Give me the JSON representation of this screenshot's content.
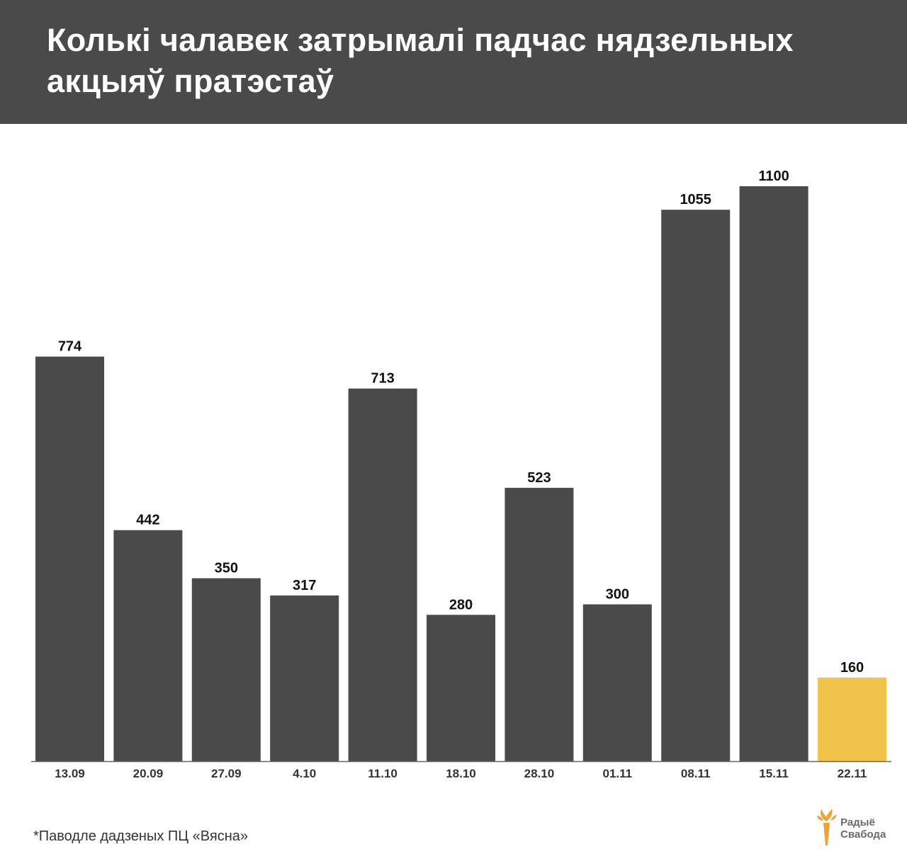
{
  "title": "Колькі чалавек затрымалі падчас нядзельных акцыяў пратэстаў",
  "footnote": "*Паводле дадзеных ПЦ «Вясна»",
  "logo": {
    "line1": "Радыё",
    "line2": "Свабода",
    "icon": "torch-logo-icon"
  },
  "colors": {
    "bar": "#4a4a4a",
    "highlight": "#f2c34b",
    "header": "#4a4a4a",
    "logo_accent": "#f0a23a"
  },
  "chart_data": {
    "type": "bar",
    "title": "Колькі чалавек затрымалі падчас нядзельных акцыяў пратэстаў",
    "xlabel": "",
    "ylabel": "",
    "categories": [
      "13.09",
      "20.09",
      "27.09",
      "4.10",
      "11.10",
      "18.10",
      "28.10",
      "01.11",
      "08.11",
      "15.11",
      "22.11"
    ],
    "values": [
      774,
      442,
      350,
      317,
      713,
      280,
      523,
      300,
      1055,
      1100,
      160
    ],
    "highlight_index": 10,
    "ylim": [
      0,
      1100
    ],
    "grid": false,
    "legend": "none"
  }
}
